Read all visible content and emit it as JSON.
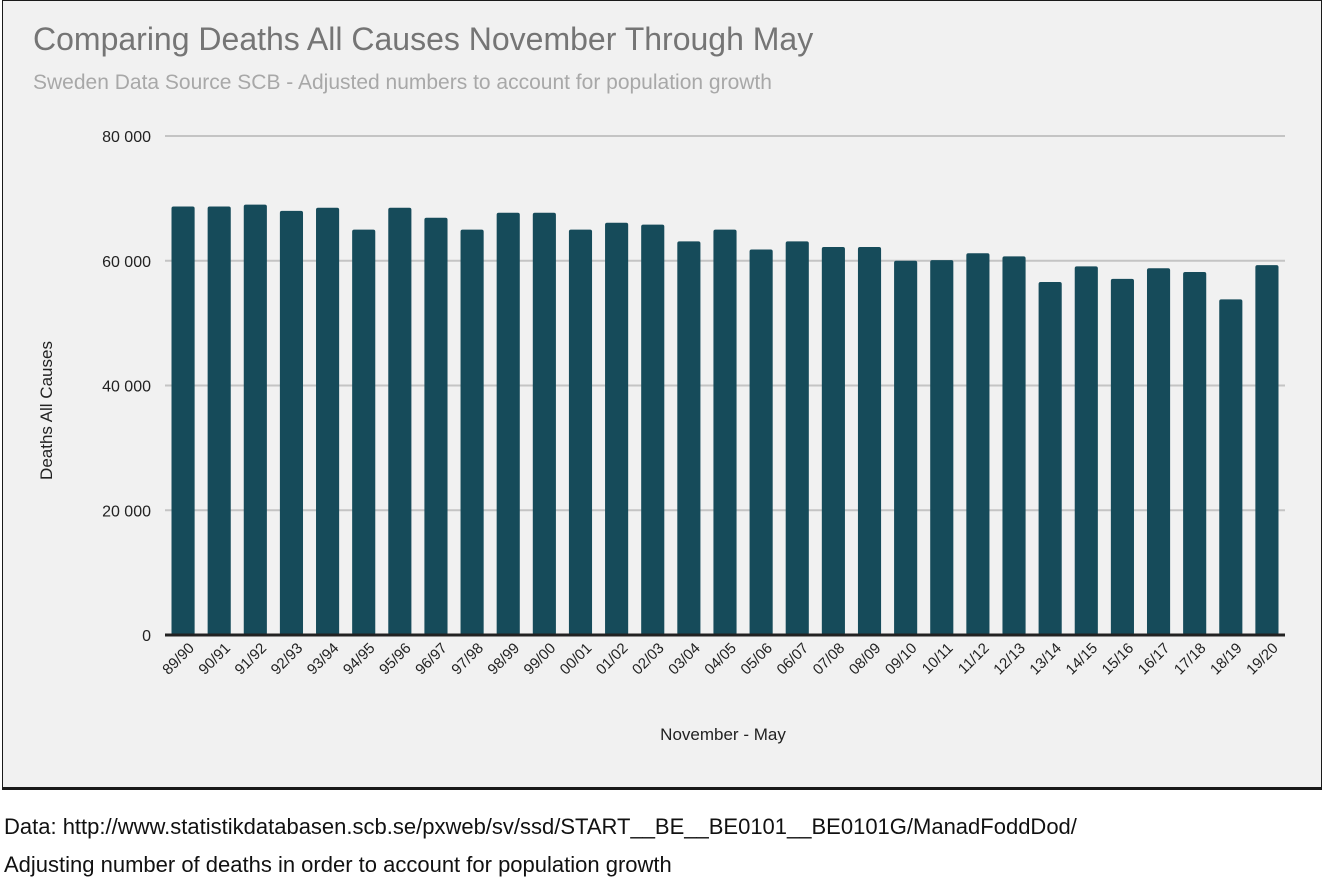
{
  "chart_data": {
    "type": "bar",
    "title": "Comparing Deaths All Causes November Through May",
    "subtitle": "Sweden Data Source SCB - Adjusted numbers to account for population growth",
    "xlabel": "November - May",
    "ylabel": "Deaths All Causes",
    "ylim": [
      0,
      80000
    ],
    "yticks": [
      0,
      20000,
      40000,
      60000,
      80000
    ],
    "ytick_labels": [
      "0",
      "20 000",
      "40 000",
      "60 000",
      "80 000"
    ],
    "grid": true,
    "legend": "none",
    "bar_color": "#164b5a",
    "categories": [
      "89/90",
      "90/91",
      "91/92",
      "92/93",
      "93/94",
      "94/95",
      "95/96",
      "96/97",
      "97/98",
      "98/99",
      "99/00",
      "00/01",
      "01/02",
      "02/03",
      "03/04",
      "04/05",
      "05/06",
      "06/07",
      "07/08",
      "08/09",
      "09/10",
      "10/11",
      "11/12",
      "12/13",
      "13/14",
      "14/15",
      "15/16",
      "16/17",
      "17/18",
      "18/19",
      "19/20"
    ],
    "values": [
      68700,
      68700,
      69000,
      68000,
      68500,
      65000,
      68500,
      66900,
      65000,
      67700,
      67700,
      65000,
      66100,
      65800,
      63100,
      65000,
      61800,
      63100,
      62200,
      62200,
      60000,
      60100,
      61200,
      60700,
      56600,
      59100,
      57100,
      58800,
      58200,
      53800,
      59300
    ]
  },
  "footer": {
    "source": "Data: http://www.statistikdatabasen.scb.se/pxweb/sv/ssd/START__BE__BE0101__BE0101G/ManadFoddDod/",
    "note": "Adjusting number of deaths in order to account for population growth"
  }
}
